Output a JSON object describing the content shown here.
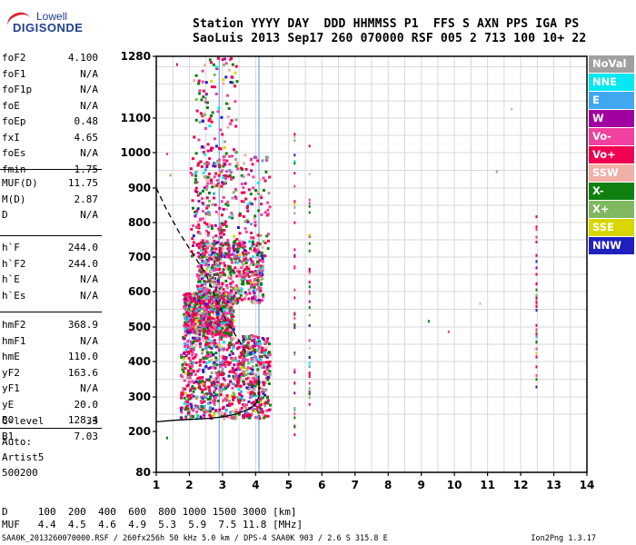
{
  "logo": {
    "line1": "Lowell",
    "line2": "DIGISONDE"
  },
  "header": {
    "line1": "Station YYYY DAY  DDD HHMMSS P1  FFS S AXN PPS IGA PS",
    "line2": "SaoLuis 2013 Sep17 260 070000 RSF 005 2 713 100 10+ 22"
  },
  "params_group1": [
    {
      "name": "foF2",
      "value": "4.100"
    },
    {
      "name": "foF1",
      "value": "N/A"
    },
    {
      "name": "foF1p",
      "value": "N/A"
    },
    {
      "name": "foE",
      "value": "N/A"
    },
    {
      "name": "foEp",
      "value": "0.48"
    },
    {
      "name": "fxI",
      "value": "4.65"
    },
    {
      "name": "foEs",
      "value": "N/A"
    },
    {
      "name": "fmin",
      "value": "1.75"
    }
  ],
  "params_group2": [
    {
      "name": "MUF(D)",
      "value": "11.75"
    },
    {
      "name": "M(D)",
      "value": "2.87"
    },
    {
      "name": "D",
      "value": "N/A"
    }
  ],
  "params_group3": [
    {
      "name": "h`F",
      "value": "244.0"
    },
    {
      "name": "h`F2",
      "value": "244.0"
    },
    {
      "name": "h`E",
      "value": "N/A"
    },
    {
      "name": "h`Es",
      "value": "N/A"
    }
  ],
  "params_group4": [
    {
      "name": "hmF2",
      "value": "368.9"
    },
    {
      "name": "hmF1",
      "value": "N/A"
    },
    {
      "name": "hmE",
      "value": "110.0"
    },
    {
      "name": "yF2",
      "value": "163.6"
    },
    {
      "name": "yF1",
      "value": "N/A"
    },
    {
      "name": "yE",
      "value": "20.0"
    },
    {
      "name": "B0",
      "value": "128.4"
    },
    {
      "name": "B1",
      "value": "7.03"
    }
  ],
  "clevel": {
    "name": "C-level",
    "value": "33"
  },
  "auto": {
    "line1": "Auto:",
    "line2": "Artist5",
    "line3": "500200"
  },
  "muf_table": {
    "line1": "D     100  200  400  600  800 1000 1500 3000 [km]",
    "line2": "MUF   4.4  4.5  4.6  4.9  5.3  5.9  7.5 11.8 [MHz]"
  },
  "footer": "SAA0K_2013260070000.RSF / 260fx256h 50 kHz 5.0 km / DPS-4 SAA0K 903 / 2.6 S 315.8 E",
  "version": "Ion2Png 1.3.17",
  "legend": [
    {
      "label": "NoVal",
      "color": "#a0a0a0"
    },
    {
      "label": "NNE",
      "color": "#00e8f0"
    },
    {
      "label": "E",
      "color": "#40a8f0"
    },
    {
      "label": "W",
      "color": "#a000a0"
    },
    {
      "label": "Vo-",
      "color": "#f040a0"
    },
    {
      "label": "Vo+",
      "color": "#f00050"
    },
    {
      "label": "SSW",
      "color": "#f0b0a8"
    },
    {
      "label": "X-",
      "color": "#108010"
    },
    {
      "label": "X+",
      "color": "#80b860"
    },
    {
      "label": "SSE",
      "color": "#d8d800"
    },
    {
      "label": "NNW",
      "color": "#2020c0"
    }
  ],
  "chart_data": {
    "type": "scatter",
    "xlabel": "",
    "ylabel": "",
    "x_ticks": [
      1,
      2,
      3,
      4,
      5,
      6,
      7,
      8,
      9,
      10,
      11,
      12,
      13,
      14
    ],
    "y_ticks": [
      80,
      200,
      300,
      400,
      500,
      600,
      700,
      800,
      900,
      1000,
      1100,
      1280
    ],
    "xlim": [
      1,
      14
    ],
    "ylim": [
      80,
      1280
    ],
    "grid": true,
    "vertical_markers_mhz": [
      2.9,
      4.1
    ],
    "profile_curve": [
      [
        4.1,
        360
      ],
      [
        4.1,
        300
      ],
      [
        4.0,
        280
      ],
      [
        3.8,
        265
      ],
      [
        3.4,
        250
      ],
      [
        3.0,
        242
      ],
      [
        2.5,
        237
      ],
      [
        2.0,
        235
      ],
      [
        1.5,
        232
      ],
      [
        1.0,
        228
      ]
    ],
    "trace_curve": [
      [
        1.0,
        900
      ],
      [
        1.3,
        840
      ],
      [
        1.7,
        770
      ],
      [
        2.1,
        710
      ],
      [
        2.5,
        650
      ],
      [
        2.8,
        580
      ],
      [
        3.1,
        520
      ],
      [
        3.4,
        475
      ],
      [
        3.7,
        430
      ]
    ],
    "dense_regions": [
      {
        "x": [
          1.7,
          4.4
        ],
        "y": [
          240,
          480
        ],
        "density": 1.0
      },
      {
        "x": [
          1.8,
          3.3
        ],
        "y": [
          480,
          600
        ],
        "density": 0.8
      },
      {
        "x": [
          2.2,
          4.2
        ],
        "y": [
          570,
          750
        ],
        "density": 0.6
      },
      {
        "x": [
          2.0,
          4.4
        ],
        "y": [
          700,
          1000
        ],
        "density": 0.35
      },
      {
        "x": [
          2.1,
          3.4
        ],
        "y": [
          900,
          1280
        ],
        "density": 0.15
      }
    ],
    "isolated_columns": [
      {
        "x": 5.15,
        "y": [
          180,
          1060
        ]
      },
      {
        "x": 5.6,
        "y": [
          280,
          1040
        ]
      },
      {
        "x": 12.45,
        "y": [
          320,
          830
        ]
      }
    ],
    "isolated_points": [
      [
        1.3,
        1000
      ],
      [
        1.4,
        940
      ],
      [
        1.3,
        185
      ],
      [
        9.2,
        520
      ],
      [
        9.8,
        490
      ],
      [
        10.75,
        570
      ],
      [
        11.25,
        950
      ],
      [
        11.7,
        1130
      ],
      [
        1.6,
        1260
      ]
    ]
  }
}
